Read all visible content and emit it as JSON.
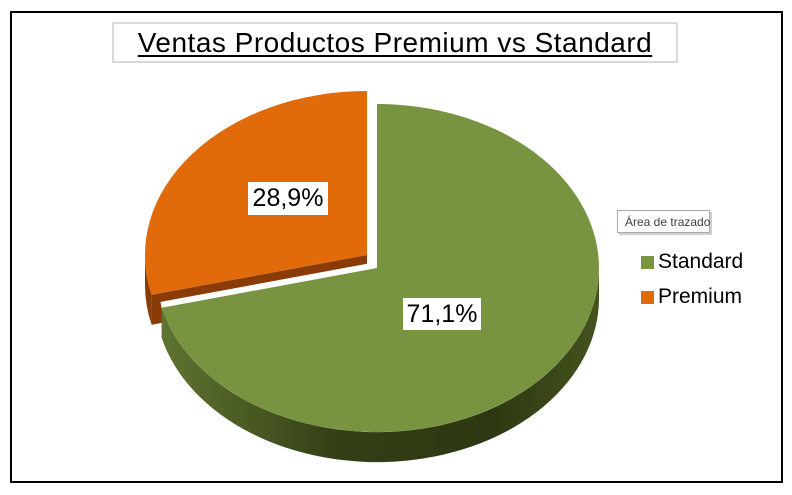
{
  "title": {
    "text": "Ventas Productos Premium vs Standard"
  },
  "tooltip": {
    "text": "Área de trazado"
  },
  "legend": {
    "position": "right",
    "items": [
      {
        "label": "Standard",
        "color": "#789440"
      },
      {
        "label": "Premium",
        "color": "#E16B0A"
      }
    ]
  },
  "chart_data": {
    "type": "pie",
    "style": "3d-exploded",
    "title": "Ventas Productos Premium vs Standard",
    "labels": [
      "Standard",
      "Premium"
    ],
    "values": [
      71.1,
      28.9
    ],
    "value_labels": [
      "71,1%",
      "28,9%"
    ],
    "exploded_slice": "Premium",
    "start_angle_deg": 0,
    "direction": "clockwise",
    "legend_position": "right",
    "colors": {
      "standard_top": "#789440",
      "standard_side_light": "#5f7430",
      "standard_side_dark": "#2d3812",
      "premium_top": "#E16B0A",
      "premium_side": "#8a3c08",
      "background": "#ffffff",
      "frame_border": "#000000",
      "title_border": "#d9d9d9"
    }
  }
}
